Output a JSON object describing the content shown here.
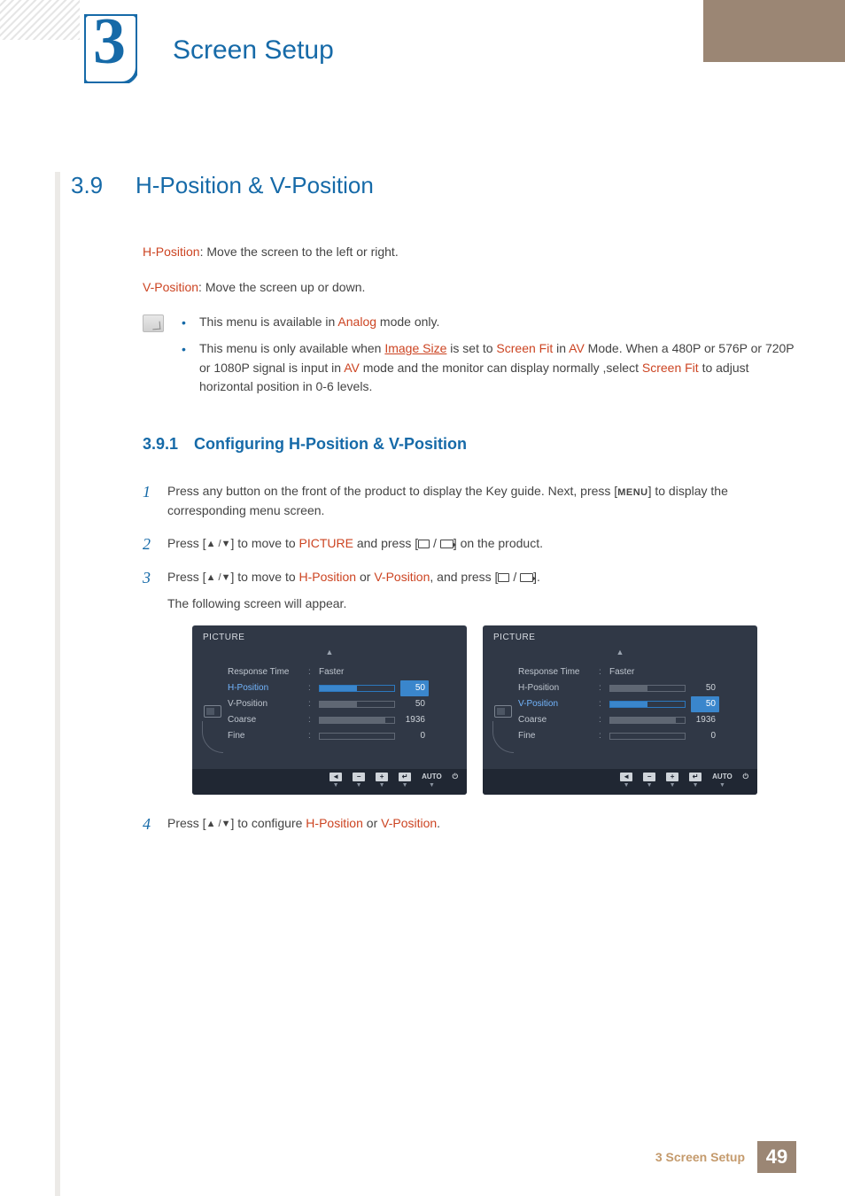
{
  "chapter": {
    "number": "3",
    "title": "Screen Setup"
  },
  "section": {
    "number": "3.9",
    "title": "H-Position & V-Position"
  },
  "intro": {
    "hpos_label": "H-Position",
    "hpos_text": ": Move the screen to the left or right.",
    "vpos_label": "V-Position",
    "vpos_text": ": Move the screen up or down."
  },
  "notes": {
    "line1_a": "This menu is available in ",
    "line1_b": "Analog",
    "line1_c": " mode only.",
    "line2_a": "This menu is only available when ",
    "line2_b": "Image Size",
    "line2_c": " is set to ",
    "line2_d": "Screen Fit",
    "line2_e": " in ",
    "line2_f": "AV",
    "line2_g": " Mode. When a 480P or 576P or 720P or 1080P signal is input in ",
    "line2_h": "AV",
    "line2_i": " mode and the monitor can display normally ,select ",
    "line2_j": "Screen Fit",
    "line2_k": " to adjust horizontal position in 0-6 levels."
  },
  "subsection": {
    "number": "3.9.1",
    "title": "Configuring H-Position & V-Position"
  },
  "steps": {
    "s1a": "Press any button on the front of the product to display the Key guide. Next, press [",
    "s1b": "MENU",
    "s1c": "] to display the corresponding menu screen.",
    "s2a": "Press [",
    "s2b": "] to move to ",
    "s2c": "PICTURE",
    "s2d": " and press [",
    "s2e": "] on the product.",
    "s3a": "Press [",
    "s3b": "] to move to ",
    "s3c": "H-Position",
    "s3d": " or ",
    "s3e": "V-Position",
    "s3f": ", and press [",
    "s3g": "].",
    "s3h": "The following screen will appear.",
    "s4a": "Press [",
    "s4b": "] to configure ",
    "s4c": "H-Position",
    "s4d": " or ",
    "s4e": "V-Position",
    "s4f": "."
  },
  "osd": {
    "title": "PICTURE",
    "items": [
      {
        "label": "Response Time",
        "type": "text",
        "value": "Faster"
      },
      {
        "label": "H-Position",
        "type": "bar",
        "value": 50,
        "max": 100
      },
      {
        "label": "V-Position",
        "type": "bar",
        "value": 50,
        "max": 100
      },
      {
        "label": "Coarse",
        "type": "bar",
        "value": 1936,
        "max": 2200
      },
      {
        "label": "Fine",
        "type": "bar",
        "value": 0,
        "max": 100
      }
    ],
    "panel_left_highlight": "H-Position",
    "panel_right_highlight": "V-Position",
    "footer_auto": "AUTO",
    "colors": {
      "panel_bg": "#303846",
      "footer_bg": "#202733",
      "highlight": "#3a86cc",
      "highlight_text": "#73b6ff",
      "bar_border": "#606875",
      "bar_fill": "#5f6773",
      "text": "#bfc6cf"
    }
  },
  "footer": {
    "text": "3 Screen Setup",
    "page": "49"
  }
}
